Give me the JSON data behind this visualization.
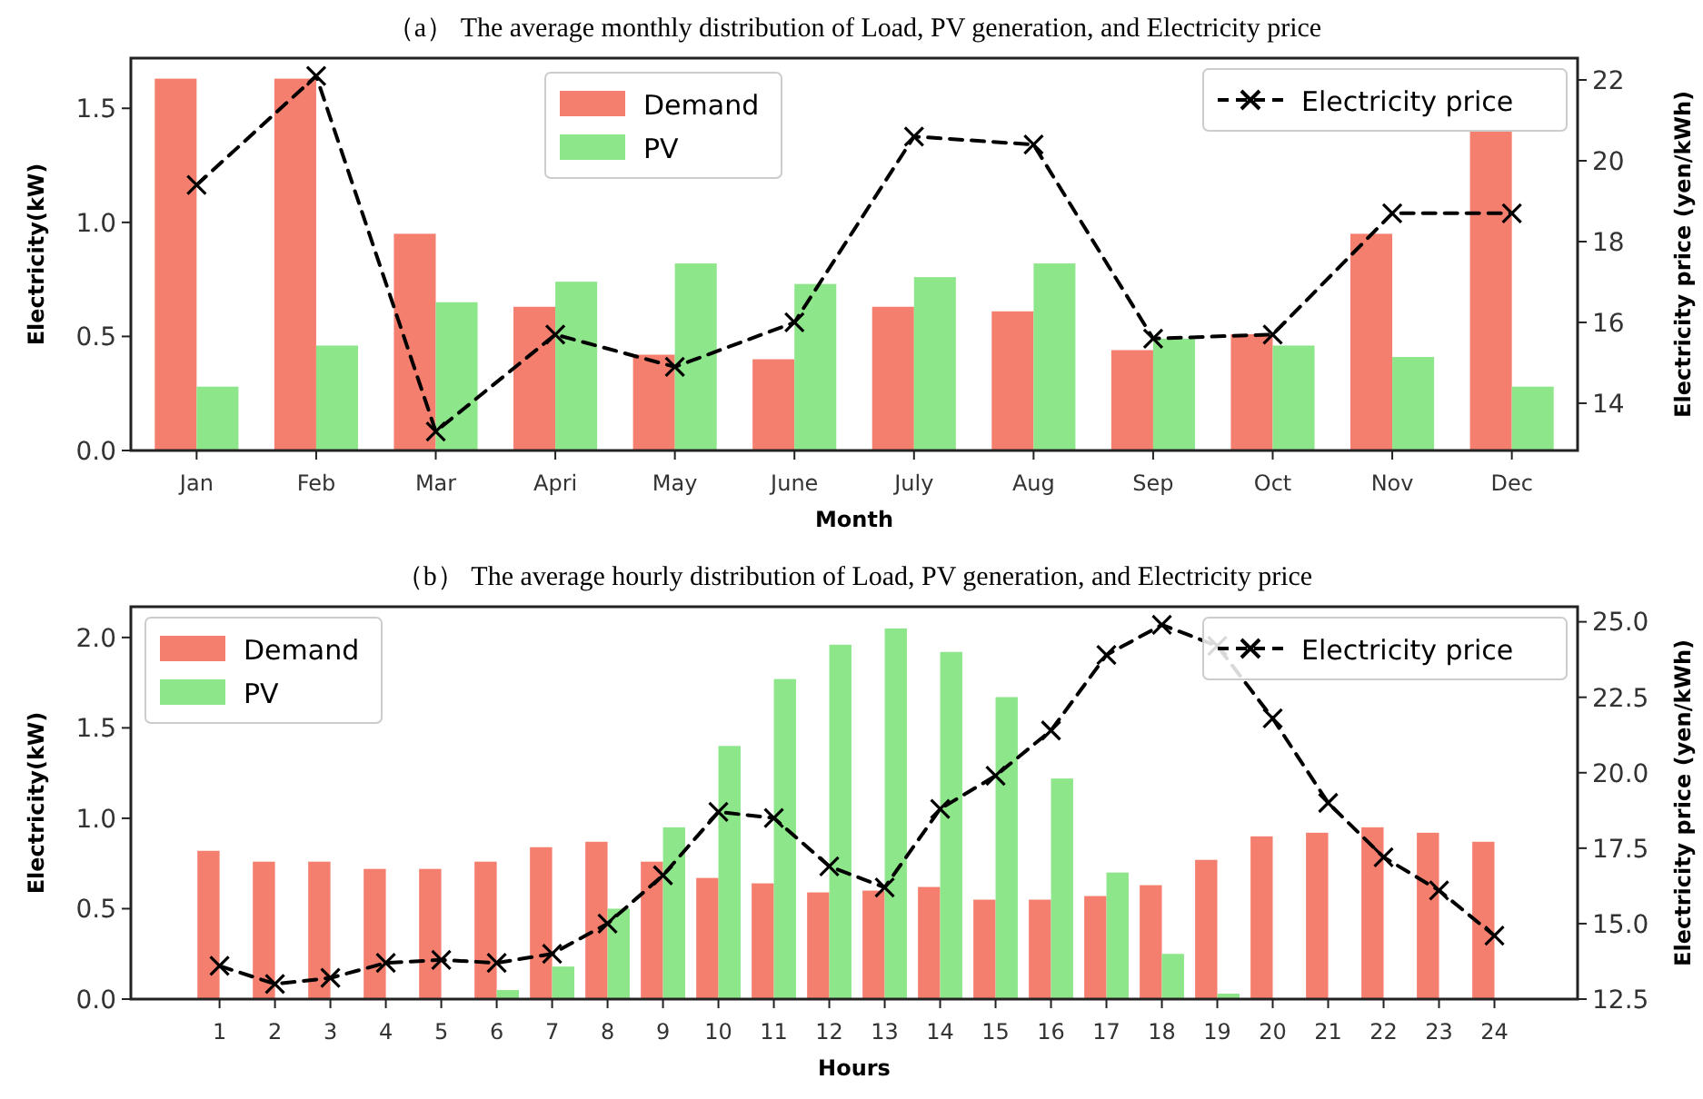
{
  "chart_data": [
    {
      "type": "bar",
      "title": "（a） The average monthly distribution of Load, PV generation, and Electricity price",
      "xlabel": "Month",
      "ylabel": "Electricity(kW)",
      "y2label": "Electricity price (yen/kWh)",
      "categories": [
        "Jan",
        "Feb",
        "Mar",
        "Apri",
        "May",
        "June",
        "July",
        "Aug",
        "Sep",
        "Oct",
        "Nov",
        "Dec"
      ],
      "series": [
        {
          "name": "Demand",
          "color": "#f47f6e",
          "values": [
            1.63,
            1.63,
            0.95,
            0.63,
            0.42,
            0.4,
            0.63,
            0.61,
            0.44,
            0.51,
            0.95,
            1.4
          ]
        },
        {
          "name": "PV",
          "color": "#8ee68a",
          "values": [
            0.28,
            0.46,
            0.65,
            0.74,
            0.82,
            0.73,
            0.76,
            0.82,
            0.49,
            0.46,
            0.41,
            0.28
          ]
        },
        {
          "name": "Electricity price",
          "type": "line",
          "axis": "y2",
          "color": "#000000",
          "marker": "cross",
          "line_style": "dashed",
          "values": [
            19.4,
            22.1,
            13.3,
            15.7,
            14.9,
            16.0,
            20.6,
            20.4,
            15.6,
            15.7,
            18.7,
            18.7
          ]
        }
      ],
      "ylim": [
        0,
        1.72
      ],
      "yticks": [
        {
          "value": 0,
          "label": "0.0"
        },
        {
          "value": 0.5,
          "label": "0.5"
        },
        {
          "value": 1,
          "label": "1.0"
        },
        {
          "value": 1.5,
          "label": "1.5"
        }
      ],
      "y2lim": [
        12.83,
        22.54
      ],
      "y2ticks": [
        14,
        16,
        18,
        20,
        22
      ],
      "legend": "top",
      "grid": false
    },
    {
      "type": "bar",
      "title": "（b） The average hourly distribution of Load, PV generation, and Electricity price",
      "xlabel": "Hours",
      "ylabel": "Electricity(kW)",
      "y2label": "Electricity price (yen/kWh)",
      "x": [
        1,
        2,
        3,
        4,
        5,
        6,
        7,
        8,
        9,
        10,
        11,
        12,
        13,
        14,
        15,
        16,
        17,
        18,
        19,
        20,
        21,
        22,
        23,
        24
      ],
      "xlim": [
        -0.6,
        25.5
      ],
      "xticks": [
        1,
        2,
        3,
        4,
        5,
        6,
        7,
        8,
        9,
        10,
        11,
        12,
        13,
        14,
        15,
        16,
        17,
        18,
        19,
        20,
        21,
        22,
        23,
        24
      ],
      "series": [
        {
          "name": "Demand",
          "color": "#f47f6e",
          "values": [
            0.82,
            0.76,
            0.76,
            0.72,
            0.72,
            0.76,
            0.84,
            0.87,
            0.76,
            0.67,
            0.64,
            0.59,
            0.6,
            0.62,
            0.55,
            0.55,
            0.57,
            0.63,
            0.77,
            0.9,
            0.92,
            0.95,
            0.92,
            0.87
          ]
        },
        {
          "name": "PV",
          "color": "#8ee68a",
          "values": [
            0,
            0,
            0,
            0,
            0,
            0.05,
            0.18,
            0.5,
            0.95,
            1.4,
            1.77,
            1.96,
            2.05,
            1.92,
            1.67,
            1.22,
            0.7,
            0.25,
            0.03,
            0,
            0,
            0,
            0,
            0
          ]
        },
        {
          "name": "Electricity price",
          "type": "line",
          "axis": "y2",
          "color": "#000000",
          "marker": "cross",
          "line_style": "dashed",
          "values": [
            13.6,
            13.0,
            13.2,
            13.7,
            13.8,
            13.7,
            14.0,
            15.0,
            16.6,
            18.7,
            18.5,
            16.9,
            16.2,
            18.8,
            19.9,
            21.4,
            23.9,
            24.9,
            24.2,
            21.8,
            19.0,
            17.2,
            16.1,
            14.6
          ]
        }
      ],
      "ylim": [
        0,
        2.17
      ],
      "yticks": [
        {
          "value": 0,
          "label": "0.0"
        },
        {
          "value": 0.5,
          "label": "0.5"
        },
        {
          "value": 1,
          "label": "1.0"
        },
        {
          "value": 1.5,
          "label": "1.5"
        },
        {
          "value": 2,
          "label": "2.0"
        }
      ],
      "y2lim": [
        12.5,
        25.5
      ],
      "y2ticks": [
        12.5,
        {
          "value": 15,
          "label": "15.0"
        },
        17.5,
        {
          "value": 20,
          "label": "20.0"
        },
        22.5,
        {
          "value": 25,
          "label": "25.0"
        }
      ],
      "legend": "top left",
      "grid": false
    }
  ]
}
